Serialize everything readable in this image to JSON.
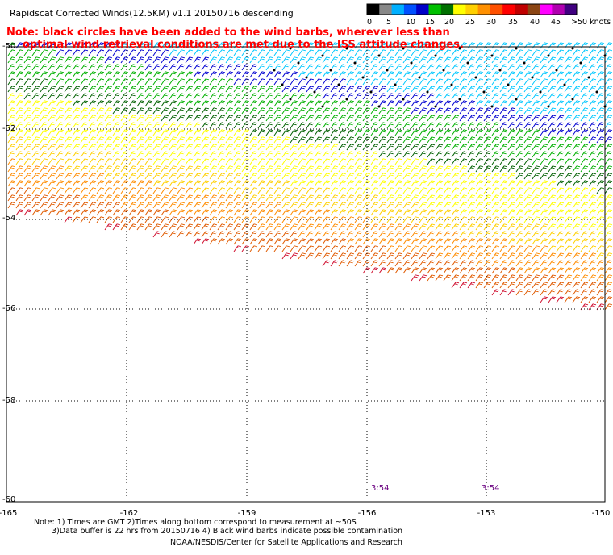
{
  "header": {
    "title": "Rapidscat Corrected Winds(12.5KM) v1.1 20150716 descending",
    "note_line1": "Note: black circles have been added to the wind barbs, wherever less than",
    "note_line2": "optimal wind retrieval conditions are met due to the ISS attitude changes."
  },
  "colorbar": {
    "labels": [
      "0",
      "5",
      "10",
      "15",
      "20",
      "25",
      "30",
      "35",
      "40",
      "45",
      ">50 knots"
    ],
    "colors": [
      "#000000",
      "#888888",
      "#00b0ff",
      "#0050ff",
      "#0000c8",
      "#00c000",
      "#007000",
      "#ffff00",
      "#ffd000",
      "#ff9000",
      "#ff5000",
      "#ff0000",
      "#c00000",
      "#8b4513",
      "#ff00ff",
      "#b000b0",
      "#400080"
    ]
  },
  "map": {
    "lat_labels": [
      "-50",
      "-52",
      "-54",
      "-56",
      "-58",
      "-60"
    ],
    "lon_labels": [
      "-165",
      "-162",
      "-159",
      "-156",
      "-153",
      "-150"
    ],
    "time_labels": [
      "3:54",
      "3:54"
    ]
  },
  "footer": {
    "note1": "Note: 1) Times are GMT 2)Times along bottom correspond to measurement at ~50S",
    "note2": "3)Data buffer is 22 hrs from 20150716 4) Black wind barbs indicate possible contamination",
    "credit": "NOAA/NESDIS/Center for Satellite Applications and Research"
  }
}
